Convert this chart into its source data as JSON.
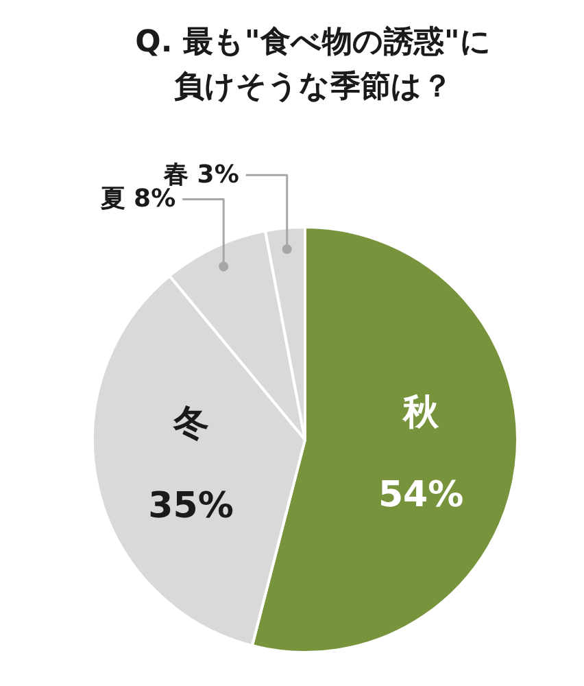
{
  "chart_data": {
    "type": "pie",
    "title": "Q. 最も\"食べ物の誘惑\"に負けそうな季節は？",
    "categories": [
      "秋",
      "冬",
      "夏",
      "春"
    ],
    "values": [
      54,
      35,
      8,
      3
    ],
    "value_labels": [
      "54%",
      "35%",
      "8%",
      "3%"
    ],
    "colors": [
      "#77933c",
      "#d9d9d9",
      "#d9d9d9",
      "#d9d9d9"
    ]
  }
}
